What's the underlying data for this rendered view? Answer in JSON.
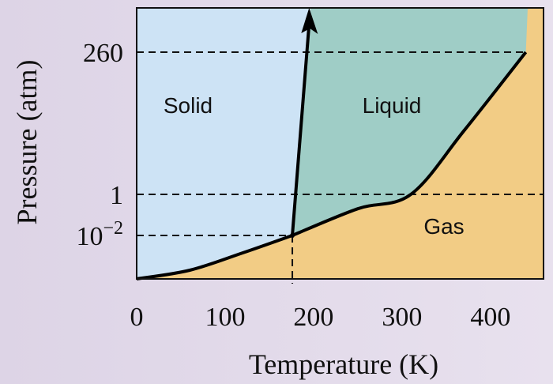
{
  "chart_data": {
    "type": "phase-diagram",
    "xlabel": "Temperature (K)",
    "ylabel": "Pressure (atm)",
    "xlim": [
      0,
      460
    ],
    "x_ticks": [
      "0",
      "100",
      "200",
      "300",
      "400"
    ],
    "y_ticks": [
      {
        "label": "260",
        "value": 260
      },
      {
        "label": "1",
        "value": 1
      },
      {
        "label": "10^-2",
        "value": 0.01
      }
    ],
    "y_scale": "nonlinear",
    "regions": [
      {
        "name": "Solid",
        "color": "#cde3f5"
      },
      {
        "name": "Liquid",
        "color": "#9fcdc6"
      },
      {
        "name": "Gas",
        "color": "#f2cc85"
      }
    ],
    "sublimation_curve": [
      {
        "T": 0,
        "P": 0
      },
      {
        "T": 60,
        "P": 0.002
      },
      {
        "T": 120,
        "P": 0.006
      },
      {
        "T": 176,
        "P": 0.01
      }
    ],
    "vaporization_curve": [
      {
        "T": 176,
        "P": 0.01
      },
      {
        "T": 250,
        "P": 0.2
      },
      {
        "T": 310,
        "P": 1
      },
      {
        "T": 370,
        "P": 12
      },
      {
        "T": 440,
        "P": 260
      }
    ],
    "melting_curve": [
      {
        "T": 176,
        "P": 0.01
      },
      {
        "T": 195,
        "P": 2000
      }
    ],
    "triple_point": {
      "T": 176,
      "P": 0.01
    },
    "critical_point": {
      "T": 440,
      "P": 260
    },
    "normal_boiling_point": {
      "T": 310,
      "P": 1
    },
    "colors": {
      "curve": "#000000",
      "frame": "#111111"
    }
  }
}
